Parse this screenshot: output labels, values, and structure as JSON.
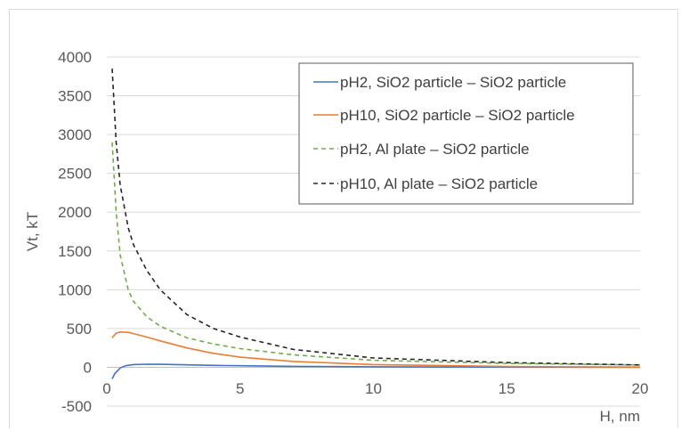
{
  "chart_data": {
    "type": "line",
    "title": "",
    "xlabel": "H, nm",
    "ylabel": "Vt, kT",
    "xlim": [
      0,
      20
    ],
    "ylim": [
      -500,
      4000
    ],
    "x_ticks": [
      "0",
      "5",
      "10",
      "15",
      "20"
    ],
    "y_ticks": [
      "4000",
      "3500",
      "3000",
      "2500",
      "2000",
      "1500",
      "1000",
      "500",
      "0",
      "-500"
    ],
    "grid": "horizontal",
    "legend_position": "top-right",
    "series": [
      {
        "name": "pH2, SiO2 particle – SiO2 particle",
        "color": "#4472c4",
        "dash": "solid",
        "points": [
          [
            0.2,
            -150
          ],
          [
            0.3,
            -80
          ],
          [
            0.5,
            -10
          ],
          [
            0.7,
            20
          ],
          [
            1,
            35
          ],
          [
            1.5,
            40
          ],
          [
            2,
            38
          ],
          [
            3,
            32
          ],
          [
            4,
            25
          ],
          [
            5,
            20
          ],
          [
            7,
            12
          ],
          [
            10,
            6
          ],
          [
            15,
            2
          ],
          [
            20,
            0
          ]
        ]
      },
      {
        "name": "pH10, SiO2 particle – SiO2 particle",
        "color": "#ed7d31",
        "dash": "solid",
        "points": [
          [
            0.2,
            380
          ],
          [
            0.35,
            440
          ],
          [
            0.5,
            455
          ],
          [
            0.8,
            450
          ],
          [
            1,
            435
          ],
          [
            1.5,
            390
          ],
          [
            2,
            340
          ],
          [
            3,
            250
          ],
          [
            4,
            180
          ],
          [
            5,
            130
          ],
          [
            7,
            75
          ],
          [
            10,
            35
          ],
          [
            15,
            10
          ],
          [
            20,
            3
          ]
        ]
      },
      {
        "name": "pH2, Al plate – SiO2 particle",
        "color": "#70ad47",
        "dash": "dashed",
        "points": [
          [
            0.2,
            2900
          ],
          [
            0.35,
            2000
          ],
          [
            0.5,
            1450
          ],
          [
            0.8,
            1000
          ],
          [
            1,
            850
          ],
          [
            1.5,
            650
          ],
          [
            2,
            530
          ],
          [
            3,
            380
          ],
          [
            4,
            300
          ],
          [
            5,
            240
          ],
          [
            7,
            160
          ],
          [
            10,
            90
          ],
          [
            15,
            50
          ],
          [
            20,
            30
          ]
        ]
      },
      {
        "name": "pH10, Al plate – SiO2 particle",
        "color": "#262626",
        "dash": "dashed",
        "points": [
          [
            0.2,
            3850
          ],
          [
            0.35,
            2900
          ],
          [
            0.5,
            2350
          ],
          [
            0.8,
            1800
          ],
          [
            1,
            1580
          ],
          [
            1.5,
            1250
          ],
          [
            2,
            1000
          ],
          [
            3,
            680
          ],
          [
            4,
            500
          ],
          [
            5,
            390
          ],
          [
            7,
            230
          ],
          [
            10,
            120
          ],
          [
            15,
            60
          ],
          [
            20,
            30
          ]
        ]
      }
    ]
  }
}
